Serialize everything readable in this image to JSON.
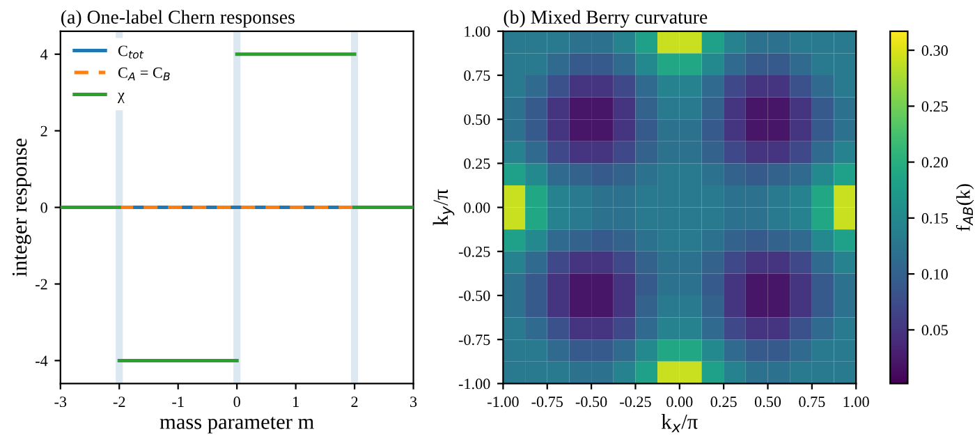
{
  "chart_data": [
    {
      "type": "line",
      "title": "(a) One-label Chern responses",
      "xlabel": "mass parameter m",
      "ylabel": "integer response",
      "xlim": [
        -3,
        3
      ],
      "xticks": [
        -3,
        -2,
        -1,
        0,
        1,
        2,
        3
      ],
      "ylim": [
        -4.6,
        4.6
      ],
      "yticks": [
        -4,
        -2,
        0,
        2,
        4
      ],
      "grid": false,
      "legend": "top left",
      "marker": "none",
      "series": [
        {
          "name": "C$_{tot}$",
          "color": "#1f77b4",
          "line_style": "solid",
          "x": [
            -2,
            2
          ],
          "values": [
            0,
            0
          ]
        },
        {
          "name": "C$_{A}$ = C$_{B}$",
          "color": "#ff7f0e",
          "line_style": "dashed",
          "x": [
            -2,
            2
          ],
          "values": [
            0,
            0
          ]
        },
        {
          "name": "χ",
          "color": "#2ca02c",
          "line_style": "solid",
          "x": [
            -3,
            -2,
            null,
            -2,
            0,
            null,
            0,
            2,
            null,
            2,
            3
          ],
          "values": [
            0,
            0,
            null,
            -4,
            -4,
            null,
            4,
            4,
            null,
            0,
            0
          ]
        }
      ],
      "bands": [
        {
          "axis": "x",
          "from": -2.06,
          "to": -1.94,
          "color": "#dbe7f1"
        },
        {
          "axis": "x",
          "from": -0.06,
          "to": 0.06,
          "color": "#dbe7f1"
        },
        {
          "axis": "x",
          "from": 1.94,
          "to": 2.06,
          "color": "#dbe7f1"
        }
      ]
    },
    {
      "type": "heatmap",
      "title": "(b) Mixed Berry curvature",
      "xlabel": "k$_{x}$/π",
      "ylabel": "k$_{y}$/π",
      "clabel": "f$_{AB}$(k)",
      "x": [
        -0.9375,
        -0.8125,
        -0.6875,
        -0.5625,
        -0.4375,
        -0.3125,
        -0.1875,
        -0.0625,
        0.0625,
        0.1875,
        0.3125,
        0.4375,
        0.5625,
        0.6875,
        0.8125,
        0.9375
      ],
      "y": [
        0.9375,
        0.8125,
        0.6875,
        0.5625,
        0.4375,
        0.3125,
        0.1875,
        0.0625,
        -0.0625,
        -0.1875,
        -0.3125,
        -0.4375,
        -0.5625,
        -0.6875,
        -0.8125,
        -0.9375
      ],
      "xlim": [
        -1,
        1
      ],
      "ylim": [
        -1,
        1
      ],
      "xticks": [
        {
          "value": -1,
          "label": "-1.00"
        },
        {
          "value": -0.75,
          "label": "-0.75"
        },
        {
          "value": -0.5,
          "label": "-0.50"
        },
        {
          "value": -0.25,
          "label": "-0.25"
        },
        {
          "value": 0,
          "label": "0.00"
        },
        {
          "value": 0.25,
          "label": "0.25"
        },
        {
          "value": 0.5,
          "label": "0.50"
        },
        {
          "value": 0.75,
          "label": "0.75"
        },
        {
          "value": 1,
          "label": "1.00"
        }
      ],
      "yticks": [
        {
          "value": -1,
          "label": "-1.00"
        },
        {
          "value": -0.75,
          "label": "-0.75"
        },
        {
          "value": -0.5,
          "label": "-0.50"
        },
        {
          "value": -0.25,
          "label": "-0.25"
        },
        {
          "value": 0,
          "label": "0.00"
        },
        {
          "value": 0.25,
          "label": "0.25"
        },
        {
          "value": 0.5,
          "label": "0.50"
        },
        {
          "value": 0.75,
          "label": "0.75"
        },
        {
          "value": 1,
          "label": "1.00"
        }
      ],
      "clim": [
        0.002,
        0.317
      ],
      "cticks": [
        {
          "value": 0.05,
          "label": "0.05"
        },
        {
          "value": 0.1,
          "label": "0.10"
        },
        {
          "value": 0.15,
          "label": "0.15"
        },
        {
          "value": 0.2,
          "label": "0.20"
        },
        {
          "value": 0.25,
          "label": "0.25"
        },
        {
          "value": 0.3,
          "label": "0.30"
        }
      ],
      "cells": [
        [
          0.13,
          0.13,
          0.13,
          0.12,
          0.12,
          0.14,
          0.18,
          0.29,
          0.29,
          0.18,
          0.14,
          0.12,
          0.12,
          0.13,
          0.13,
          0.13
        ],
        [
          0.13,
          0.13,
          0.11,
          0.09,
          0.09,
          0.11,
          0.15,
          0.19,
          0.19,
          0.15,
          0.11,
          0.09,
          0.09,
          0.11,
          0.13,
          0.13
        ],
        [
          0.13,
          0.11,
          0.08,
          0.05,
          0.05,
          0.07,
          0.11,
          0.14,
          0.14,
          0.11,
          0.07,
          0.05,
          0.05,
          0.08,
          0.11,
          0.13
        ],
        [
          0.12,
          0.09,
          0.05,
          0.02,
          0.02,
          0.05,
          0.1,
          0.13,
          0.13,
          0.1,
          0.05,
          0.02,
          0.02,
          0.05,
          0.09,
          0.12
        ],
        [
          0.12,
          0.09,
          0.05,
          0.02,
          0.02,
          0.05,
          0.09,
          0.12,
          0.12,
          0.09,
          0.05,
          0.02,
          0.02,
          0.05,
          0.09,
          0.12
        ],
        [
          0.14,
          0.11,
          0.07,
          0.05,
          0.05,
          0.07,
          0.1,
          0.12,
          0.12,
          0.1,
          0.07,
          0.05,
          0.05,
          0.07,
          0.11,
          0.14
        ],
        [
          0.18,
          0.15,
          0.11,
          0.1,
          0.09,
          0.1,
          0.12,
          0.13,
          0.13,
          0.12,
          0.1,
          0.09,
          0.1,
          0.11,
          0.15,
          0.18
        ],
        [
          0.29,
          0.19,
          0.14,
          0.13,
          0.12,
          0.12,
          0.13,
          0.13,
          0.13,
          0.13,
          0.12,
          0.12,
          0.13,
          0.14,
          0.19,
          0.29
        ],
        [
          0.29,
          0.19,
          0.14,
          0.13,
          0.12,
          0.12,
          0.13,
          0.13,
          0.13,
          0.13,
          0.12,
          0.12,
          0.13,
          0.14,
          0.19,
          0.29
        ],
        [
          0.18,
          0.15,
          0.11,
          0.1,
          0.09,
          0.1,
          0.12,
          0.13,
          0.13,
          0.12,
          0.1,
          0.09,
          0.1,
          0.11,
          0.15,
          0.18
        ],
        [
          0.14,
          0.11,
          0.07,
          0.05,
          0.05,
          0.07,
          0.1,
          0.12,
          0.12,
          0.1,
          0.07,
          0.05,
          0.05,
          0.07,
          0.11,
          0.14
        ],
        [
          0.12,
          0.09,
          0.05,
          0.02,
          0.02,
          0.05,
          0.09,
          0.12,
          0.12,
          0.09,
          0.05,
          0.02,
          0.02,
          0.05,
          0.09,
          0.12
        ],
        [
          0.12,
          0.09,
          0.05,
          0.02,
          0.02,
          0.05,
          0.1,
          0.13,
          0.13,
          0.1,
          0.05,
          0.02,
          0.02,
          0.05,
          0.09,
          0.12
        ],
        [
          0.13,
          0.11,
          0.08,
          0.05,
          0.05,
          0.07,
          0.11,
          0.14,
          0.14,
          0.11,
          0.07,
          0.05,
          0.05,
          0.08,
          0.11,
          0.13
        ],
        [
          0.13,
          0.13,
          0.11,
          0.09,
          0.09,
          0.11,
          0.15,
          0.19,
          0.19,
          0.15,
          0.11,
          0.09,
          0.09,
          0.11,
          0.13,
          0.13
        ],
        [
          0.13,
          0.13,
          0.13,
          0.12,
          0.12,
          0.14,
          0.18,
          0.29,
          0.29,
          0.18,
          0.14,
          0.12,
          0.12,
          0.13,
          0.13,
          0.13
        ]
      ]
    }
  ]
}
